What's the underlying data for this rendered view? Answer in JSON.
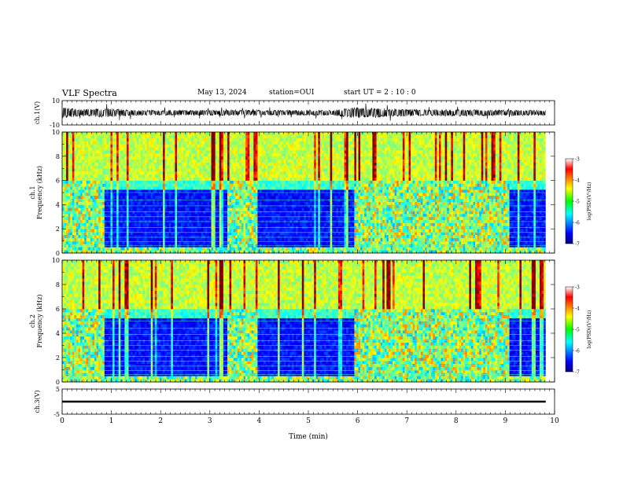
{
  "header": {
    "title": "VLF Spectra",
    "date": "May 13, 2024",
    "station": "station=OUI",
    "start": "start  UT =   2 : 10 : 0"
  },
  "chart_data": [
    {
      "type": "line",
      "id": "ch1-waveform",
      "ylabel": "ch.1(V)",
      "ylim": [
        -10,
        10
      ],
      "yticks": [
        "10",
        "-10"
      ],
      "xlim": [
        0,
        10
      ],
      "envelope_amplitude_v": [
        {
          "t": 0.0,
          "a": 4.0
        },
        {
          "t": 0.5,
          "a": 2.5
        },
        {
          "t": 0.85,
          "a": 3.5
        },
        {
          "t": 1.5,
          "a": 2.0
        },
        {
          "t": 2.5,
          "a": 2.0
        },
        {
          "t": 3.5,
          "a": 2.2
        },
        {
          "t": 4.2,
          "a": 2.0
        },
        {
          "t": 5.5,
          "a": 2.0
        },
        {
          "t": 5.95,
          "a": 4.0
        },
        {
          "t": 6.4,
          "a": 3.5
        },
        {
          "t": 7.2,
          "a": 2.5
        },
        {
          "t": 8.2,
          "a": 2.5
        },
        {
          "t": 9.1,
          "a": 2.2
        },
        {
          "t": 9.8,
          "a": 2.0
        }
      ]
    },
    {
      "type": "heatmap",
      "id": "ch1-spectrogram",
      "ylabel": "ch.1\nFrequency (kHz)",
      "ylim": [
        0,
        10
      ],
      "yticks": [
        "0",
        "2",
        "4",
        "6",
        "8",
        "10"
      ],
      "xlim": [
        0,
        10
      ],
      "colorbar": {
        "label": "log(PSD)(V²/Hz)",
        "min": -7,
        "max": -3,
        "ticks": [
          "-3",
          "-4",
          "-5",
          "-6",
          "-7"
        ]
      },
      "activity_intervals_min": [
        [
          0.0,
          0.85
        ],
        [
          3.35,
          3.95
        ],
        [
          5.95,
          9.1
        ]
      ]
    },
    {
      "type": "heatmap",
      "id": "ch2-spectrogram",
      "ylabel": "ch.2\nFrequency (kHz)",
      "ylim": [
        0,
        10
      ],
      "yticks": [
        "0",
        "2",
        "4",
        "6",
        "8",
        "10"
      ],
      "xlim": [
        0,
        10
      ],
      "colorbar": {
        "label": "log(PSD)(V²/Hz)",
        "min": -7,
        "max": -3,
        "ticks": [
          "-3",
          "-4",
          "-5",
          "-6",
          "-7"
        ]
      },
      "activity_intervals_min": [
        [
          0.0,
          0.85
        ],
        [
          3.35,
          3.95
        ],
        [
          5.95,
          9.1
        ]
      ]
    },
    {
      "type": "line",
      "id": "ch3-waveform",
      "ylabel": "ch.3(V)",
      "ylim": [
        -5,
        5
      ],
      "yticks": [
        "5",
        "-5"
      ],
      "xlim": [
        0,
        10
      ],
      "level_v": 0,
      "line_thickness_v": 0.5
    }
  ],
  "xaxis": {
    "label": "Time (min)",
    "ticks": [
      "0",
      "1",
      "2",
      "3",
      "4",
      "5",
      "6",
      "7",
      "8",
      "9",
      "10"
    ]
  }
}
